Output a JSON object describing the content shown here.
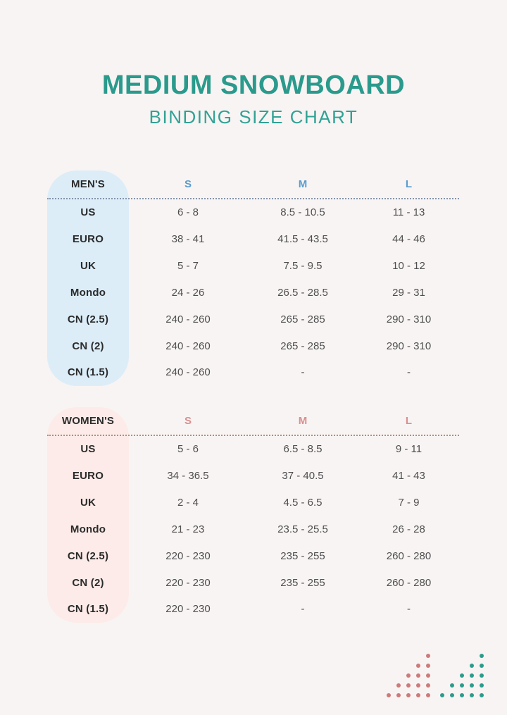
{
  "header": {
    "title": "MEDIUM SNOWBOARD",
    "subtitle": "BINDING SIZE CHART"
  },
  "colors": {
    "background": "#f8f4f3",
    "title_teal": "#2a9a8c",
    "subtitle_teal": "#31a295",
    "mens_pill": "#dcedf8",
    "womens_pill": "#fcebe8",
    "mens_header": "#5a9bce",
    "womens_header": "#d98f8f",
    "mens_divider": "#8695ac",
    "womens_divider": "#b28e7d",
    "label_text": "#2b2b2b",
    "value_text": "#4f4f4f",
    "decor_pink": "#cc7a7a",
    "decor_teal": "#2b9c8c"
  },
  "tables": [
    {
      "id": "mens",
      "group_label": "MEN'S",
      "columns": [
        "S",
        "M",
        "L"
      ],
      "rows": [
        {
          "label": "US",
          "values": [
            "6 - 8",
            "8.5 - 10.5",
            "11 - 13"
          ]
        },
        {
          "label": "EURO",
          "values": [
            "38 - 41",
            "41.5 - 43.5",
            "44 - 46"
          ]
        },
        {
          "label": "UK",
          "values": [
            "5 - 7",
            "7.5 - 9.5",
            "10 - 12"
          ]
        },
        {
          "label": "Mondo",
          "values": [
            "24 - 26",
            "26.5 - 28.5",
            "29 - 31"
          ]
        },
        {
          "label": "CN (2.5)",
          "values": [
            "240 - 260",
            "265 - 285",
            "290 - 310"
          ]
        },
        {
          "label": "CN (2)",
          "values": [
            "240 - 260",
            "265 - 285",
            "290 - 310"
          ]
        },
        {
          "label": "CN (1.5)",
          "values": [
            "240 - 260",
            "-",
            "-"
          ]
        }
      ]
    },
    {
      "id": "womens",
      "group_label": "WOMEN'S",
      "columns": [
        "S",
        "M",
        "L"
      ],
      "rows": [
        {
          "label": "US",
          "values": [
            "5 - 6",
            "6.5 - 8.5",
            "9 - 11"
          ]
        },
        {
          "label": "EURO",
          "values": [
            "34 - 36.5",
            "37 - 40.5",
            "41 - 43"
          ]
        },
        {
          "label": "UK",
          "values": [
            "2 - 4",
            "4.5 - 6.5",
            "7 - 9"
          ]
        },
        {
          "label": "Mondo",
          "values": [
            "21 - 23",
            "23.5 - 25.5",
            "26 - 28"
          ]
        },
        {
          "label": "CN (2.5)",
          "values": [
            "220 - 230",
            "235 - 255",
            "260 - 280"
          ]
        },
        {
          "label": "CN (2)",
          "values": [
            "220 - 230",
            "235 - 255",
            "260 - 280"
          ]
        },
        {
          "label": "CN (1.5)",
          "values": [
            "220 - 230",
            "-",
            "-"
          ]
        }
      ]
    }
  ]
}
